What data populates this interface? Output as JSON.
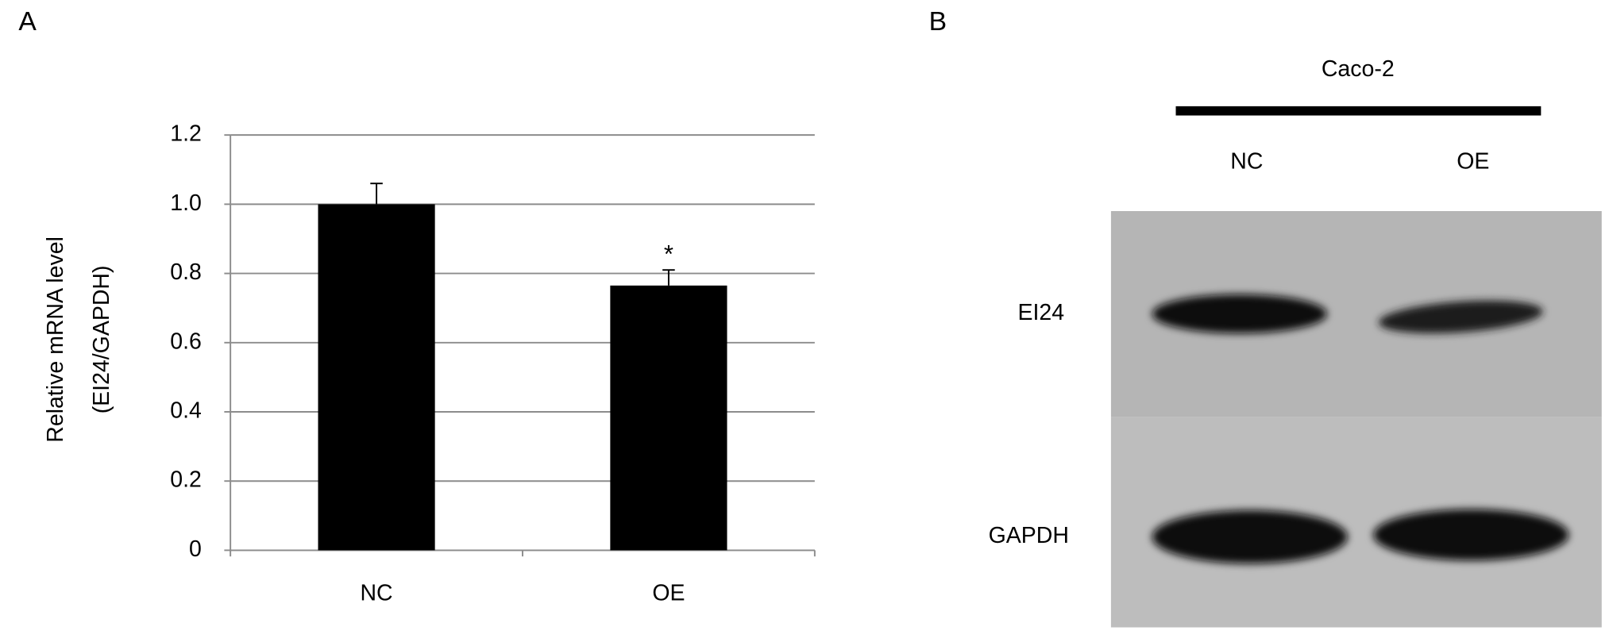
{
  "chart_data": {
    "type": "bar",
    "panel_label": "A",
    "y_label": [
      "Relative mRNA level",
      "(EI24/GAPDH)"
    ],
    "categories": [
      "NC",
      "OE"
    ],
    "values": [
      1.0,
      0.765
    ],
    "errors": [
      0.06,
      0.045
    ],
    "color": "#000000",
    "annotations": [
      {
        "text": "*",
        "x": "OE"
      }
    ],
    "ylim": [
      0,
      1.2
    ],
    "yticks": [
      0,
      0.2,
      0.4,
      0.6,
      0.8,
      {
        "value": 1,
        "label": "1.0"
      },
      1.2
    ],
    "grid": true
  },
  "blot": {
    "panel_label": "B",
    "cell_line": "Caco-2",
    "lanes": [
      "NC",
      "OE"
    ],
    "rows": [
      "EI24",
      "GAPDH"
    ]
  }
}
